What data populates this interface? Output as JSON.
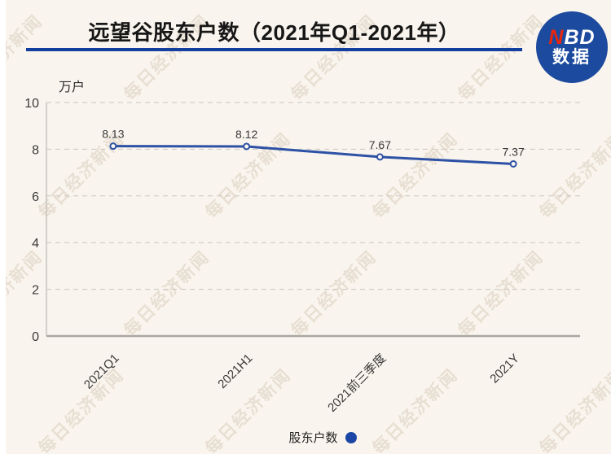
{
  "header": {
    "title": "远望谷股东户数（2021年Q1-2021年）"
  },
  "logo": {
    "line1_red": "N",
    "line1_white": "BD",
    "line2": "数据"
  },
  "watermark": {
    "text": "每日经济新闻"
  },
  "legend": {
    "label": "股东户数"
  },
  "colors": {
    "background": "#f9f4ed",
    "line": "#2d51a5",
    "title_underline": "#123f9e",
    "logo_background": "#1b4a9e",
    "logo_red": "#e8250f",
    "legend_dot": "#1b46a5"
  },
  "chart_data": {
    "type": "line",
    "title": "远望谷股东户数（2021年Q1-2021年）",
    "categories": [
      "2021Q1",
      "2021H1",
      "2021前三季度",
      "2021Y"
    ],
    "series": [
      {
        "name": "股东户数",
        "values": [
          8.13,
          8.12,
          7.67,
          7.37
        ]
      }
    ],
    "data_labels": [
      "8.13",
      "8.12",
      "7.67",
      "7.37"
    ],
    "xlabel": "",
    "ylabel": "万户",
    "ylim": [
      0,
      10
    ],
    "yticks": [
      0,
      2,
      4,
      6,
      8,
      10
    ],
    "grid": "horizontal-dashed",
    "legend_position": "bottom",
    "marker": "open-circle"
  }
}
